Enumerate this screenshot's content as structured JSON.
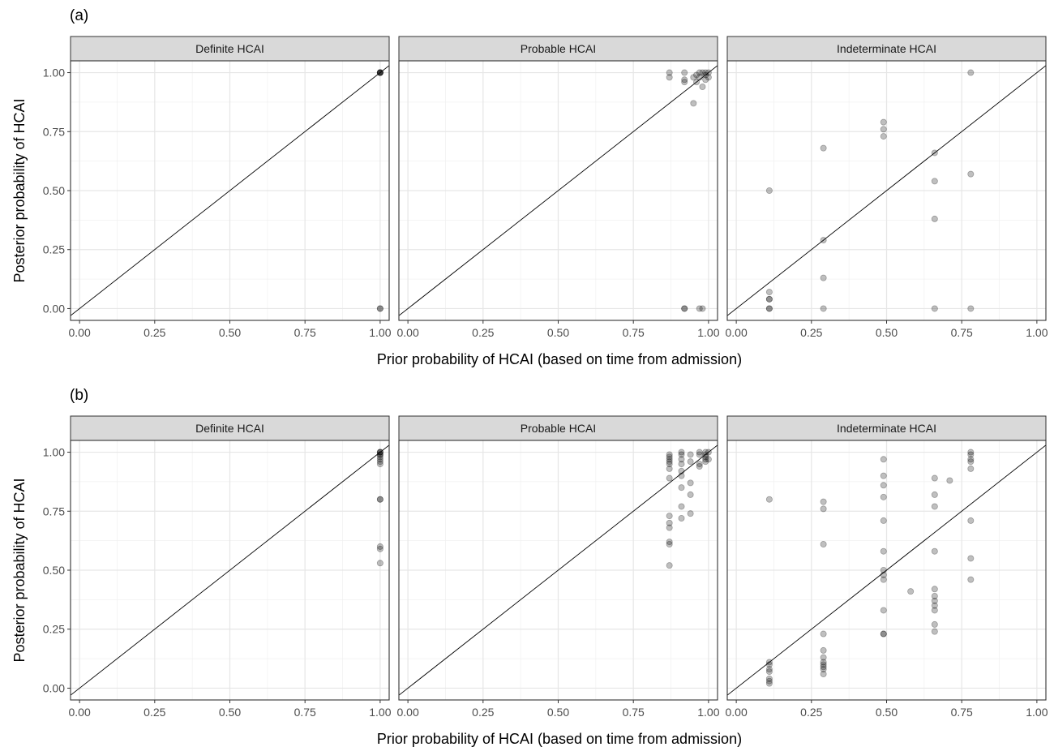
{
  "chart_data": [
    {
      "tag": "(a)",
      "type": "scatter",
      "xlabel": "Prior probability of HCAI (based on time from admission)",
      "ylabel": "Posterior probability of HCAI",
      "xlim": [
        -0.03,
        1.03
      ],
      "ylim": [
        -0.05,
        1.05
      ],
      "x_ticks": [
        "0.00",
        "0.25",
        "0.50",
        "0.75",
        "1.00"
      ],
      "y_ticks": [
        "0.00",
        "0.25",
        "0.50",
        "0.75",
        "1.00"
      ],
      "reference_line": "y = x",
      "grid": true,
      "point_style": "semi-transparent grey circles",
      "panels": [
        {
          "strip": "Definite HCAI",
          "points": [
            [
              1.0,
              1.0
            ],
            [
              1.0,
              1.0
            ],
            [
              1.0,
              1.0
            ],
            [
              1.0,
              1.0
            ],
            [
              1.0,
              1.0
            ],
            [
              1.0,
              0.0
            ],
            [
              1.0,
              0.0
            ]
          ]
        },
        {
          "strip": "Probable HCAI",
          "points": [
            [
              0.87,
              1.0
            ],
            [
              0.87,
              0.98
            ],
            [
              0.92,
              1.0
            ],
            [
              0.92,
              0.97
            ],
            [
              0.92,
              0.96
            ],
            [
              0.95,
              0.98
            ],
            [
              0.95,
              0.87
            ],
            [
              0.96,
              0.99
            ],
            [
              0.96,
              0.96
            ],
            [
              0.97,
              1.0
            ],
            [
              0.97,
              0.98
            ],
            [
              0.98,
              1.0
            ],
            [
              0.98,
              0.94
            ],
            [
              0.99,
              1.0
            ],
            [
              0.99,
              0.99
            ],
            [
              0.99,
              0.97
            ],
            [
              1.0,
              1.0
            ],
            [
              1.0,
              0.98
            ],
            [
              0.92,
              0.0
            ],
            [
              0.92,
              0.0
            ],
            [
              0.97,
              0.0
            ],
            [
              0.98,
              0.0
            ]
          ]
        },
        {
          "strip": "Indeterminate HCAI",
          "points": [
            [
              0.11,
              0.5
            ],
            [
              0.11,
              0.07
            ],
            [
              0.11,
              0.04
            ],
            [
              0.11,
              0.04
            ],
            [
              0.11,
              0.0
            ],
            [
              0.11,
              0.0
            ],
            [
              0.29,
              0.68
            ],
            [
              0.29,
              0.29
            ],
            [
              0.29,
              0.13
            ],
            [
              0.29,
              0.0
            ],
            [
              0.49,
              0.79
            ],
            [
              0.49,
              0.76
            ],
            [
              0.49,
              0.73
            ],
            [
              0.66,
              0.66
            ],
            [
              0.66,
              0.54
            ],
            [
              0.66,
              0.38
            ],
            [
              0.66,
              0.0
            ],
            [
              0.78,
              1.0
            ],
            [
              0.78,
              0.57
            ],
            [
              0.78,
              0.0
            ]
          ]
        }
      ]
    },
    {
      "tag": "(b)",
      "type": "scatter",
      "xlabel": "Prior probability of HCAI (based on time from admission)",
      "ylabel": "Posterior probability of HCAI",
      "xlim": [
        -0.03,
        1.03
      ],
      "ylim": [
        -0.05,
        1.05
      ],
      "x_ticks": [
        "0.00",
        "0.25",
        "0.50",
        "0.75",
        "1.00"
      ],
      "y_ticks": [
        "0.00",
        "0.25",
        "0.50",
        "0.75",
        "1.00"
      ],
      "reference_line": "y = x",
      "grid": true,
      "point_style": "semi-transparent grey circles",
      "panels": [
        {
          "strip": "Definite HCAI",
          "points": [
            [
              1.0,
              1.0
            ],
            [
              1.0,
              1.0
            ],
            [
              1.0,
              1.0
            ],
            [
              1.0,
              0.99
            ],
            [
              1.0,
              0.99
            ],
            [
              1.0,
              0.98
            ],
            [
              1.0,
              0.97
            ],
            [
              1.0,
              0.96
            ],
            [
              1.0,
              0.95
            ],
            [
              1.0,
              0.8
            ],
            [
              1.0,
              0.8
            ],
            [
              1.0,
              0.6
            ],
            [
              1.0,
              0.59
            ],
            [
              1.0,
              0.53
            ]
          ]
        },
        {
          "strip": "Probable HCAI",
          "points": [
            [
              0.87,
              0.99
            ],
            [
              0.87,
              0.98
            ],
            [
              0.87,
              0.97
            ],
            [
              0.87,
              0.96
            ],
            [
              0.87,
              0.95
            ],
            [
              0.87,
              0.93
            ],
            [
              0.87,
              0.89
            ],
            [
              0.87,
              0.73
            ],
            [
              0.87,
              0.7
            ],
            [
              0.87,
              0.68
            ],
            [
              0.87,
              0.62
            ],
            [
              0.87,
              0.61
            ],
            [
              0.87,
              0.52
            ],
            [
              0.91,
              1.0
            ],
            [
              0.91,
              0.99
            ],
            [
              0.91,
              0.97
            ],
            [
              0.91,
              0.95
            ],
            [
              0.91,
              0.92
            ],
            [
              0.91,
              0.9
            ],
            [
              0.91,
              0.85
            ],
            [
              0.91,
              0.77
            ],
            [
              0.91,
              0.72
            ],
            [
              0.94,
              0.99
            ],
            [
              0.94,
              0.96
            ],
            [
              0.94,
              0.87
            ],
            [
              0.94,
              0.82
            ],
            [
              0.94,
              0.74
            ],
            [
              0.97,
              1.0
            ],
            [
              0.97,
              0.99
            ],
            [
              0.97,
              0.95
            ],
            [
              0.97,
              0.94
            ],
            [
              0.99,
              1.0
            ],
            [
              0.99,
              0.99
            ],
            [
              0.99,
              0.98
            ],
            [
              0.99,
              0.97
            ],
            [
              0.99,
              0.96
            ],
            [
              1.0,
              1.0
            ],
            [
              1.0,
              0.97
            ]
          ]
        },
        {
          "strip": "Indeterminate HCAI",
          "points": [
            [
              0.11,
              0.8
            ],
            [
              0.11,
              0.11
            ],
            [
              0.11,
              0.1
            ],
            [
              0.11,
              0.08
            ],
            [
              0.11,
              0.07
            ],
            [
              0.11,
              0.04
            ],
            [
              0.11,
              0.03
            ],
            [
              0.11,
              0.02
            ],
            [
              0.29,
              0.79
            ],
            [
              0.29,
              0.76
            ],
            [
              0.29,
              0.61
            ],
            [
              0.29,
              0.23
            ],
            [
              0.29,
              0.16
            ],
            [
              0.29,
              0.13
            ],
            [
              0.29,
              0.11
            ],
            [
              0.29,
              0.1
            ],
            [
              0.29,
              0.09
            ],
            [
              0.29,
              0.08
            ],
            [
              0.29,
              0.06
            ],
            [
              0.49,
              0.97
            ],
            [
              0.49,
              0.9
            ],
            [
              0.49,
              0.86
            ],
            [
              0.49,
              0.81
            ],
            [
              0.49,
              0.71
            ],
            [
              0.49,
              0.58
            ],
            [
              0.49,
              0.5
            ],
            [
              0.49,
              0.48
            ],
            [
              0.49,
              0.46
            ],
            [
              0.49,
              0.33
            ],
            [
              0.49,
              0.23
            ],
            [
              0.49,
              0.23
            ],
            [
              0.58,
              0.41
            ],
            [
              0.66,
              0.89
            ],
            [
              0.66,
              0.82
            ],
            [
              0.66,
              0.77
            ],
            [
              0.66,
              0.58
            ],
            [
              0.66,
              0.42
            ],
            [
              0.66,
              0.39
            ],
            [
              0.66,
              0.37
            ],
            [
              0.66,
              0.35
            ],
            [
              0.66,
              0.33
            ],
            [
              0.66,
              0.27
            ],
            [
              0.66,
              0.24
            ],
            [
              0.71,
              0.88
            ],
            [
              0.78,
              1.0
            ],
            [
              0.78,
              0.99
            ],
            [
              0.78,
              0.97
            ],
            [
              0.78,
              0.96
            ],
            [
              0.78,
              0.93
            ],
            [
              0.78,
              0.71
            ],
            [
              0.78,
              0.55
            ],
            [
              0.78,
              0.46
            ]
          ]
        }
      ]
    }
  ]
}
